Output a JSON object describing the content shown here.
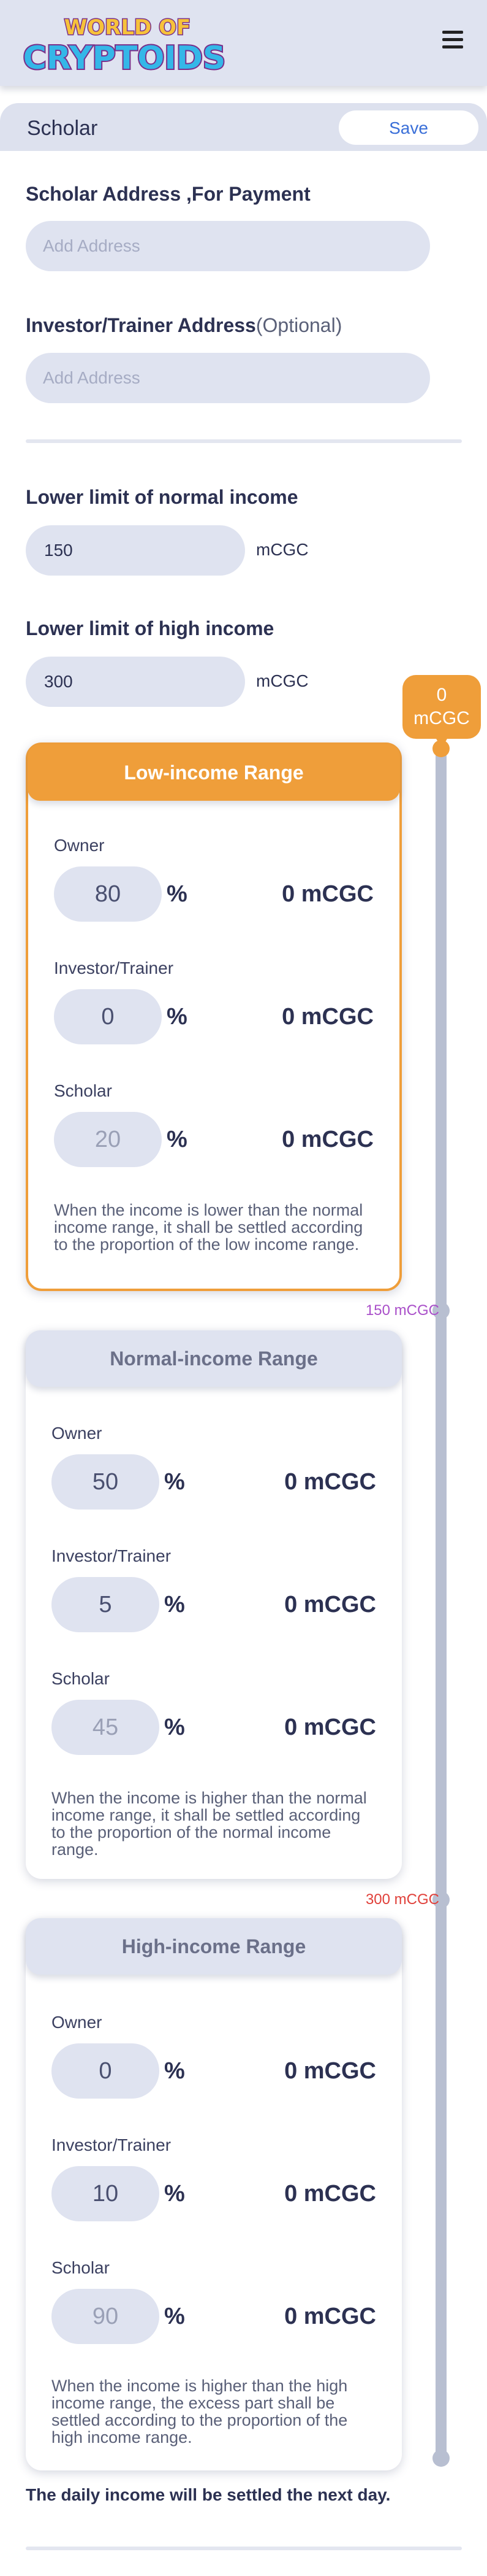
{
  "header": {
    "logo_line1": "WORLD OF",
    "logo_line2": "CRYPTOIDS",
    "menu_icon": "hamburger-menu-icon"
  },
  "section": {
    "title": "Scholar",
    "save_label": "Save"
  },
  "scholar_address": {
    "label": "Scholar Address ,For Payment",
    "placeholder": "Add Address",
    "value": ""
  },
  "investor_address": {
    "label": "Investor/Trainer Address",
    "optional": "(Optional)",
    "placeholder": "Add Address",
    "value": ""
  },
  "normal_limit": {
    "label": "Lower limit of normal income",
    "value": "150",
    "unit": "mCGC"
  },
  "high_limit": {
    "label": "Lower limit of high income",
    "value": "300",
    "unit": "mCGC"
  },
  "slider": {
    "current_value": "0",
    "current_unit": "mCGC",
    "normal_mark": "150 mCGC",
    "high_mark": "300 mCGC",
    "colors": {
      "active": "#ef9e3a",
      "track": "#b8bfd1",
      "normal_mark": "#a94fc9",
      "high_mark": "#e0403a"
    }
  },
  "ranges": {
    "low": {
      "title": "Low-income Range",
      "owner_label": "Owner",
      "owner_pct": "80",
      "owner_amount": "0 mCGC",
      "investor_label": "Investor/Trainer",
      "investor_pct": "0",
      "investor_amount": "0 mCGC",
      "scholar_label": "Scholar",
      "scholar_pct": "20",
      "scholar_amount": "0 mCGC",
      "pct_sign": "%",
      "description": "When the income is lower than the normal income range, it shall be settled according to the proportion of the low income range."
    },
    "normal": {
      "title": "Normal-income Range",
      "owner_label": "Owner",
      "owner_pct": "50",
      "owner_amount": "0 mCGC",
      "investor_label": "Investor/Trainer",
      "investor_pct": "5",
      "investor_amount": "0 mCGC",
      "scholar_label": "Scholar",
      "scholar_pct": "45",
      "scholar_amount": "0 mCGC",
      "pct_sign": "%",
      "description": "When the income is higher than the normal income range, it shall be settled according to the proportion of the normal income range."
    },
    "high": {
      "title": "High-income Range",
      "owner_label": "Owner",
      "owner_pct": "0",
      "owner_amount": "0 mCGC",
      "investor_label": "Investor/Trainer",
      "investor_pct": "10",
      "investor_amount": "0 mCGC",
      "scholar_label": "Scholar",
      "scholar_pct": "90",
      "scholar_amount": "0 mCGC",
      "pct_sign": "%",
      "description": "When the income is higher than the high income range, the excess part shall be settled according to the proportion of the high income range."
    }
  },
  "footer": {
    "note": "The daily income will be settled the next day."
  }
}
